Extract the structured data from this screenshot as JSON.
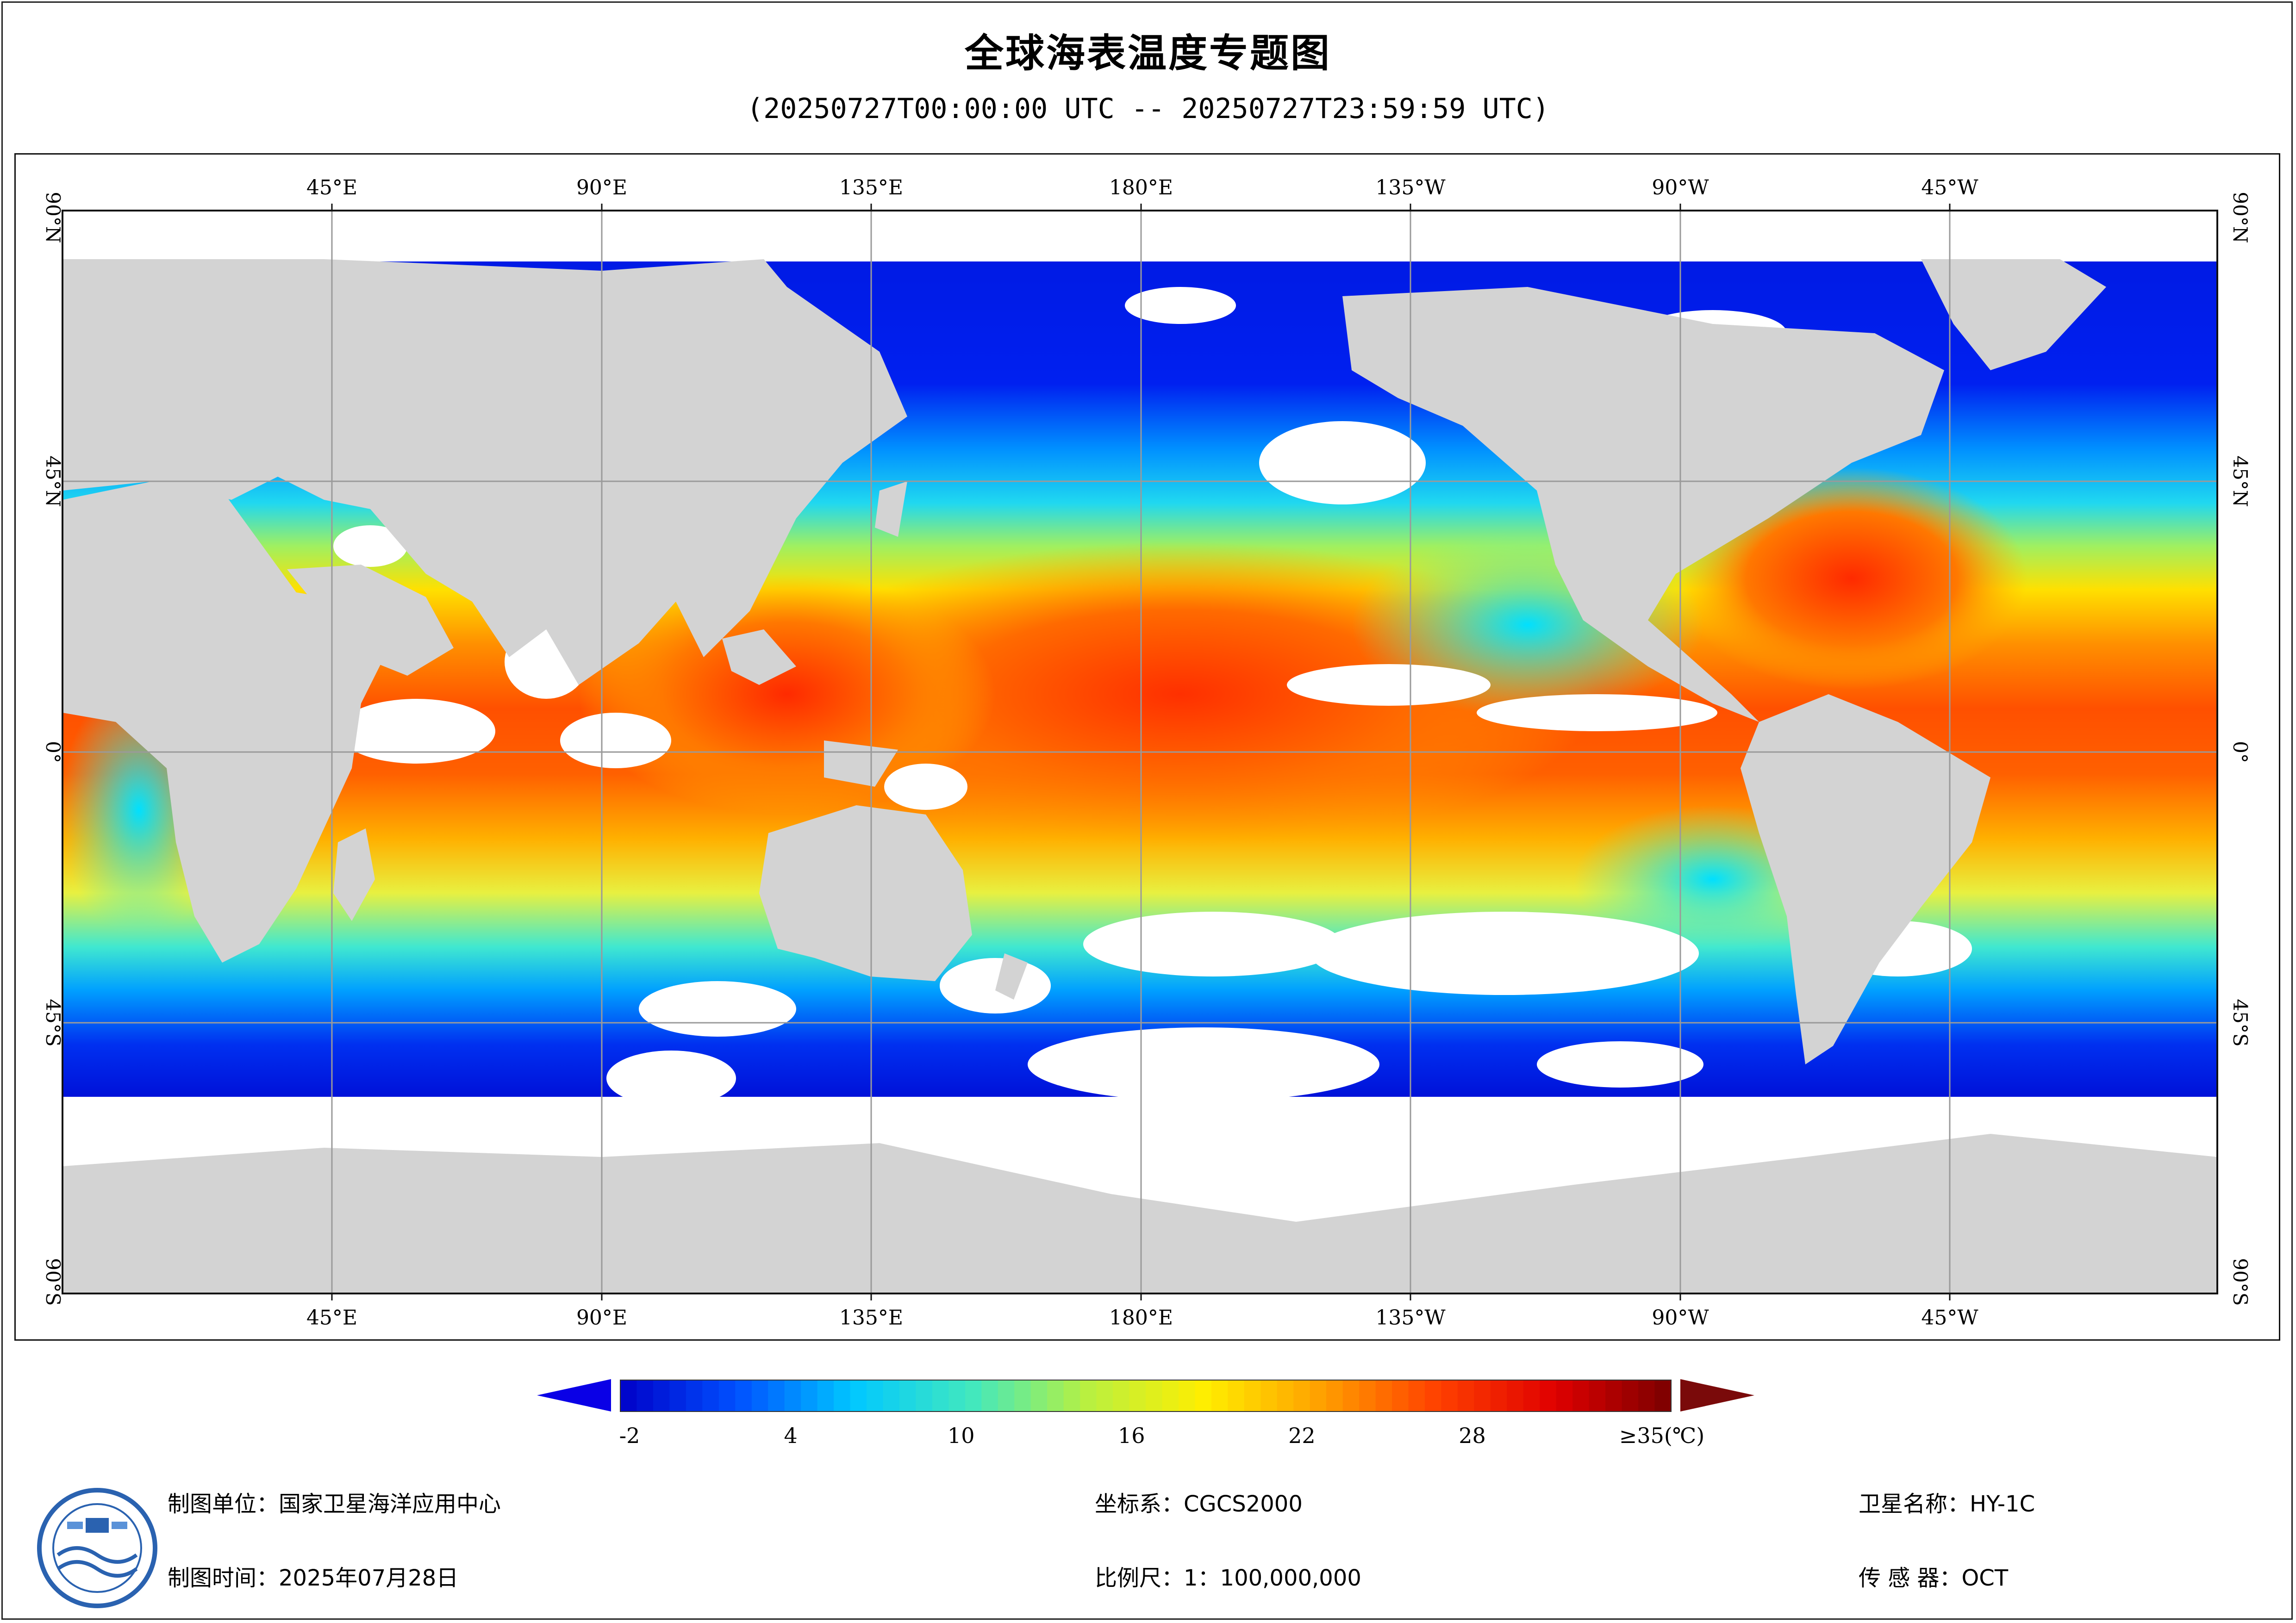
{
  "header": {
    "title": "全球海表温度专题图",
    "time_range": "(20250727T00:00:00 UTC -- 20250727T23:59:59 UTC)"
  },
  "map": {
    "lon_labels": [
      "45°E",
      "90°E",
      "135°E",
      "180°E",
      "135°W",
      "90°W",
      "45°W"
    ],
    "lat_labels": [
      "90°N",
      "45°N",
      "0°",
      "45°S",
      "90°S"
    ],
    "colors": {
      "land": "#d3d3d3",
      "no_data": "#ffffff",
      "grid": "#9a9a9a"
    }
  },
  "legend": {
    "tick_labels": [
      "-2",
      "4",
      "10",
      "16",
      "22",
      "28",
      "≥35(℃)"
    ],
    "tick_values": [
      -2,
      4,
      10,
      16,
      22,
      28,
      35
    ],
    "range": [
      -2,
      35
    ],
    "color_stops": [
      "#0000c8",
      "#0050ff",
      "#00c8ff",
      "#40e8c0",
      "#b8f040",
      "#ffee00",
      "#ffa000",
      "#ff4000",
      "#e00000",
      "#7a0000"
    ],
    "under_color": "#0a00e6",
    "over_color": "#7a0a0a"
  },
  "footer": {
    "org_label": "制图单位：国家卫星海洋应用中心",
    "date_label": "制图时间：2025年07月28日",
    "crs_label": "坐标系：CGCS2000",
    "scale_label": "比例尺：1：100,000,000",
    "satellite_label": "卫星名称：HY-1C",
    "sensor_label": "传 感 器：OCT"
  }
}
